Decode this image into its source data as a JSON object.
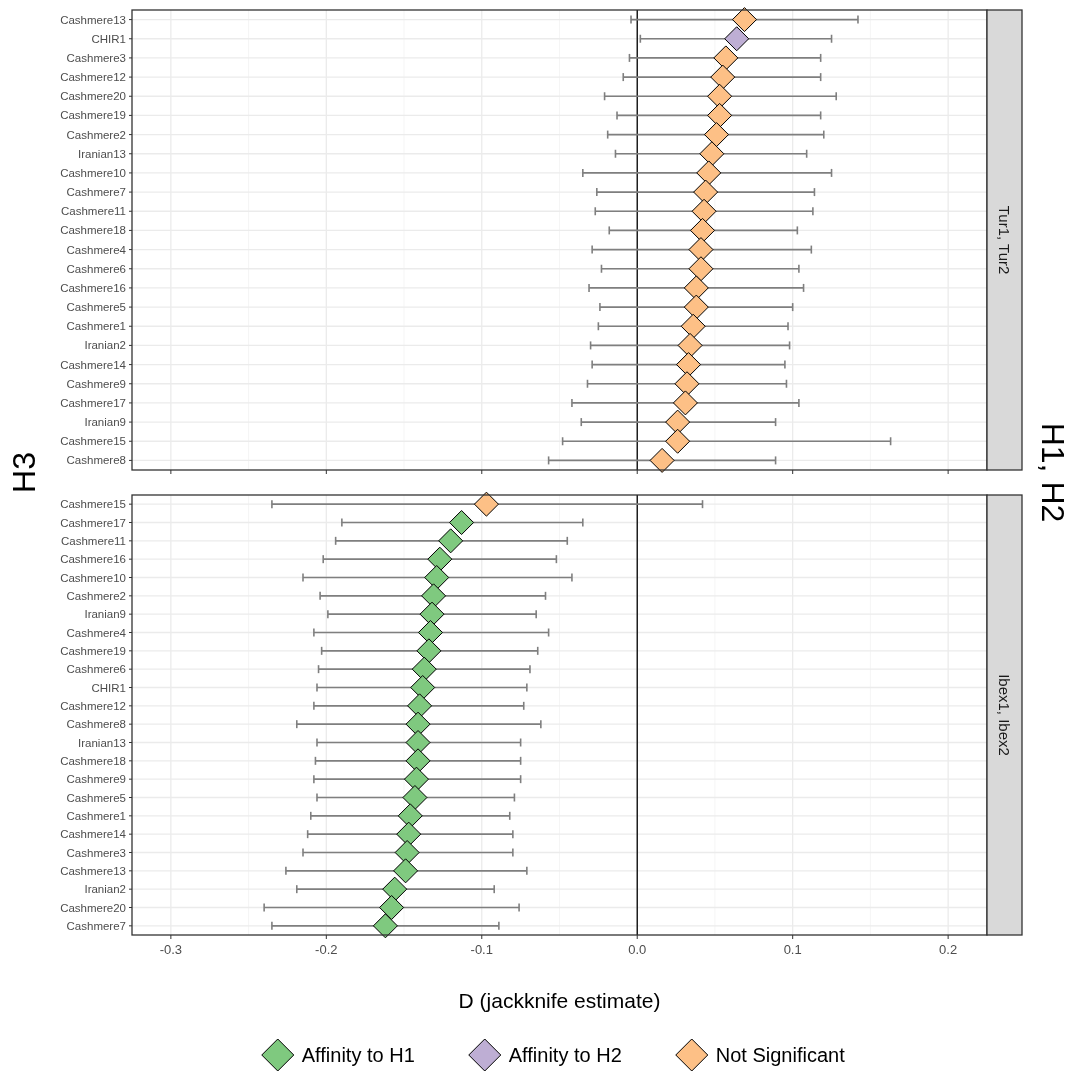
{
  "chart_data": [
    {
      "type": "scatter",
      "annotations": [
        "Tur1, Tur2"
      ],
      "ylabel": "H3",
      "y2label": "H1, H2",
      "orientation": "horizontal",
      "marker": "diamond",
      "grid": true,
      "tick_labels": "y",
      "categories": [
        "Cashmere13",
        "CHIR1",
        "Cashmere3",
        "Cashmere12",
        "Cashmere20",
        "Cashmere19",
        "Cashmere2",
        "Iranian13",
        "Cashmere10",
        "Cashmere7",
        "Cashmere11",
        "Cashmere18",
        "Cashmere4",
        "Cashmere6",
        "Cashmere16",
        "Cashmere5",
        "Cashmere1",
        "Iranian2",
        "Cashmere14",
        "Cashmere9",
        "Cashmere17",
        "Iranian9",
        "Cashmere15",
        "Cashmere8"
      ],
      "xlim": [
        -0.325,
        0.225
      ],
      "xticks": [
        -0.3,
        -0.2,
        -0.1,
        0,
        0.1,
        0.2
      ],
      "ref_lines": [
        {
          "axis": "x",
          "value": 0,
          "color": "#000000"
        }
      ],
      "series": [
        {
          "color": "#beaed4",
          "values": [
            null,
            0.064,
            null,
            null,
            null,
            null,
            null,
            null,
            null,
            null,
            null,
            null,
            null,
            null,
            null,
            null,
            null,
            null,
            null,
            null,
            null,
            null,
            null,
            null
          ],
          "errors": [
            null,
            [
              0.002,
              0.125
            ],
            null,
            null,
            null,
            null,
            null,
            null,
            null,
            null,
            null,
            null,
            null,
            null,
            null,
            null,
            null,
            null,
            null,
            null,
            null,
            null,
            null,
            null
          ]
        },
        {
          "color": "#fdc086",
          "values": [
            0.069,
            null,
            0.057,
            0.055,
            0.053,
            0.053,
            0.051,
            0.048,
            0.046,
            0.044,
            0.043,
            0.042,
            0.041,
            0.041,
            0.038,
            0.038,
            0.036,
            0.034,
            0.033,
            0.032,
            0.031,
            0.026,
            0.026,
            0.016
          ],
          "errors": [
            [
              -0.004,
              0.142
            ],
            null,
            [
              -0.005,
              0.118
            ],
            [
              -0.009,
              0.118
            ],
            [
              -0.021,
              0.128
            ],
            [
              -0.013,
              0.118
            ],
            [
              -0.019,
              0.12
            ],
            [
              -0.014,
              0.109
            ],
            [
              -0.035,
              0.125
            ],
            [
              -0.026,
              0.114
            ],
            [
              -0.027,
              0.113
            ],
            [
              -0.018,
              0.103
            ],
            [
              -0.029,
              0.112
            ],
            [
              -0.023,
              0.104
            ],
            [
              -0.031,
              0.107
            ],
            [
              -0.024,
              0.1
            ],
            [
              -0.025,
              0.097
            ],
            [
              -0.03,
              0.098
            ],
            [
              -0.029,
              0.095
            ],
            [
              -0.032,
              0.096
            ],
            [
              -0.042,
              0.104
            ],
            [
              -0.036,
              0.089
            ],
            [
              -0.048,
              0.163
            ],
            [
              -0.057,
              0.089
            ]
          ]
        }
      ]
    },
    {
      "type": "scatter",
      "annotations": [
        "Ibex1, Ibex2"
      ],
      "xlabel": "D (jackknife estimate)",
      "orientation": "horizontal",
      "marker": "diamond",
      "grid": true,
      "legend": "bottom",
      "categories": [
        "Cashmere15",
        "Cashmere17",
        "Cashmere11",
        "Cashmere16",
        "Cashmere10",
        "Cashmere2",
        "Iranian9",
        "Cashmere4",
        "Cashmere19",
        "Cashmere6",
        "CHIR1",
        "Cashmere12",
        "Cashmere8",
        "Iranian13",
        "Cashmere18",
        "Cashmere9",
        "Cashmere5",
        "Cashmere1",
        "Cashmere14",
        "Cashmere3",
        "Cashmere13",
        "Iranian2",
        "Cashmere20",
        "Cashmere7"
      ],
      "xlim": [
        -0.325,
        0.225
      ],
      "xticks": [
        -0.3,
        -0.2,
        -0.1,
        {
          "value": 0,
          "label": "0.0"
        },
        0.1,
        0.2
      ],
      "ref_lines": [
        {
          "axis": "x",
          "value": 0,
          "color": "#000000"
        }
      ],
      "series": [
        {
          "name": "Affinity to H1",
          "color": "#7fc97f",
          "values": [
            null,
            -0.113,
            -0.12,
            -0.127,
            -0.129,
            -0.131,
            -0.132,
            -0.133,
            -0.134,
            -0.137,
            -0.138,
            -0.14,
            -0.141,
            -0.141,
            -0.141,
            -0.142,
            -0.143,
            -0.146,
            -0.147,
            -0.148,
            -0.149,
            -0.156,
            -0.158,
            -0.162
          ],
          "errors": [
            null,
            [
              -0.19,
              -0.035
            ],
            [
              -0.194,
              -0.045
            ],
            [
              -0.202,
              -0.052
            ],
            [
              -0.215,
              -0.042
            ],
            [
              -0.204,
              -0.059
            ],
            [
              -0.199,
              -0.065
            ],
            [
              -0.208,
              -0.057
            ],
            [
              -0.203,
              -0.064
            ],
            [
              -0.205,
              -0.069
            ],
            [
              -0.206,
              -0.071
            ],
            [
              -0.208,
              -0.073
            ],
            [
              -0.219,
              -0.062
            ],
            [
              -0.206,
              -0.075
            ],
            [
              -0.207,
              -0.075
            ],
            [
              -0.208,
              -0.075
            ],
            [
              -0.206,
              -0.079
            ],
            [
              -0.21,
              -0.082
            ],
            [
              -0.212,
              -0.08
            ],
            [
              -0.215,
              -0.08
            ],
            [
              -0.226,
              -0.071
            ],
            [
              -0.219,
              -0.092
            ],
            [
              -0.24,
              -0.076
            ],
            [
              -0.235,
              -0.089
            ]
          ]
        },
        {
          "name": "Affinity to H2",
          "color": "#beaed4",
          "values": [
            null,
            null,
            null,
            null,
            null,
            null,
            null,
            null,
            null,
            null,
            null,
            null,
            null,
            null,
            null,
            null,
            null,
            null,
            null,
            null,
            null,
            null,
            null,
            null
          ]
        },
        {
          "name": "Not Significant",
          "color": "#fdc086",
          "values": [
            -0.097,
            null,
            null,
            null,
            null,
            null,
            null,
            null,
            null,
            null,
            null,
            null,
            null,
            null,
            null,
            null,
            null,
            null,
            null,
            null,
            null,
            null,
            null,
            null
          ],
          "errors": [
            [
              -0.235,
              0.042
            ],
            null,
            null,
            null,
            null,
            null,
            null,
            null,
            null,
            null,
            null,
            null,
            null,
            null,
            null,
            null,
            null,
            null,
            null,
            null,
            null,
            null,
            null,
            null
          ]
        }
      ]
    }
  ]
}
